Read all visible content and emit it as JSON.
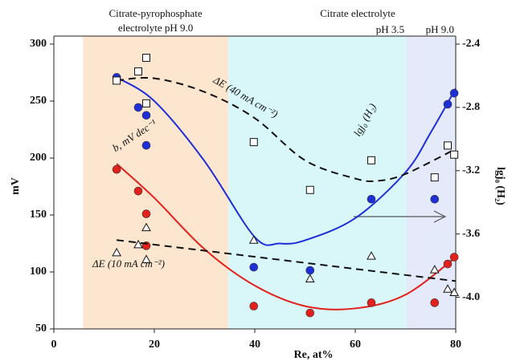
{
  "chart_data": {
    "type": "scatter",
    "xlabel": "Re, at%",
    "ylabel": "mV",
    "y2label": "lgj₀ (H₂)",
    "xlim": [
      0,
      80
    ],
    "xticks": [
      0,
      20,
      40,
      60,
      80
    ],
    "ylim": [
      50,
      300
    ],
    "yticks": [
      50,
      100,
      150,
      200,
      250,
      300
    ],
    "y2lim": [
      -4.2,
      -2.4
    ],
    "y2ticks": [
      -2.4,
      -2.8,
      -3.2,
      -3.6,
      {
        "value": -4,
        "label": "-4.0"
      }
    ],
    "regions": [
      {
        "xlim": [
          5.8,
          34.7
        ],
        "color": "#fde6cf",
        "label": [
          "Citrate-pyrophosphate",
          "electrolyte pH 9.0"
        ]
      },
      {
        "xlim": [
          34.7,
          70.1
        ],
        "color": "#d9f6f8",
        "label": [
          "pH 3.5"
        ]
      },
      {
        "xlim": [
          70.1,
          80
        ],
        "color": "#e4eafa",
        "label": [
          "pH 9.0"
        ]
      }
    ],
    "group_label": "Citrate electrolyte",
    "series": [
      {
        "name": "lgj₀ (H₂)",
        "color": "#1f2fd8",
        "marker": "circle",
        "axis": "y2",
        "dash": false,
        "x": [
          12.5,
          16.8,
          18.4,
          18.4,
          39.8,
          51,
          63.2,
          75.8,
          78.4,
          79.7
        ],
        "values": [
          -2.61,
          -2.8,
          -2.85,
          -3.04,
          -3.81,
          -3.83,
          -3.38,
          -3.38,
          -2.78,
          -2.71
        ],
        "fit": {
          "x": [
            12.5,
            20,
            30,
            40,
            45,
            50,
            60,
            70,
            75,
            80
          ],
          "values": [
            -2.61,
            -2.76,
            -3.14,
            -3.62,
            -3.66,
            -3.64,
            -3.5,
            -3.21,
            -2.96,
            -2.68
          ]
        }
      },
      {
        "name": "b, mV dec⁻¹",
        "color": "#e3201c",
        "marker": "circle",
        "dash": false,
        "x": [
          12.5,
          16.8,
          18.4,
          18.4,
          39.8,
          51,
          63.2,
          75.8,
          78.4,
          79.7
        ],
        "values": [
          190,
          171,
          151,
          123,
          70,
          64,
          73,
          73,
          107,
          113
        ],
        "fit": {
          "x": [
            12.5,
            20,
            30,
            40,
            50,
            60,
            70,
            80
          ],
          "values": [
            195,
            165,
            120,
            88,
            70,
            68,
            80,
            113
          ]
        }
      },
      {
        "name": "ΔE (40 mA cm⁻²)",
        "color": "#111111",
        "marker": "square",
        "dash": true,
        "x": [
          12.5,
          16.8,
          18.4,
          18.4,
          39.8,
          51,
          63.2,
          75.8,
          78.4,
          79.7
        ],
        "values": [
          268,
          276,
          288,
          248,
          214,
          172,
          198,
          183,
          211,
          203
        ],
        "fit": {
          "x": [
            12.5,
            20,
            30,
            40,
            50,
            60,
            64.5,
            70,
            80
          ],
          "values": [
            268,
            270,
            258,
            235,
            198,
            182,
            180,
            186,
            208
          ]
        }
      },
      {
        "name": "ΔE (10 mA cm⁻²)",
        "color": "#111111",
        "marker": "triangle",
        "dash": true,
        "x": [
          12.5,
          16.8,
          18.4,
          18.4,
          39.8,
          51,
          63.2,
          75.8,
          78.4,
          79.7
        ],
        "values": [
          117,
          124,
          139,
          111,
          128,
          94,
          114,
          102,
          85,
          82
        ],
        "fit": {
          "x": [
            12.5,
            80
          ],
          "values": [
            128,
            92
          ]
        }
      }
    ]
  }
}
